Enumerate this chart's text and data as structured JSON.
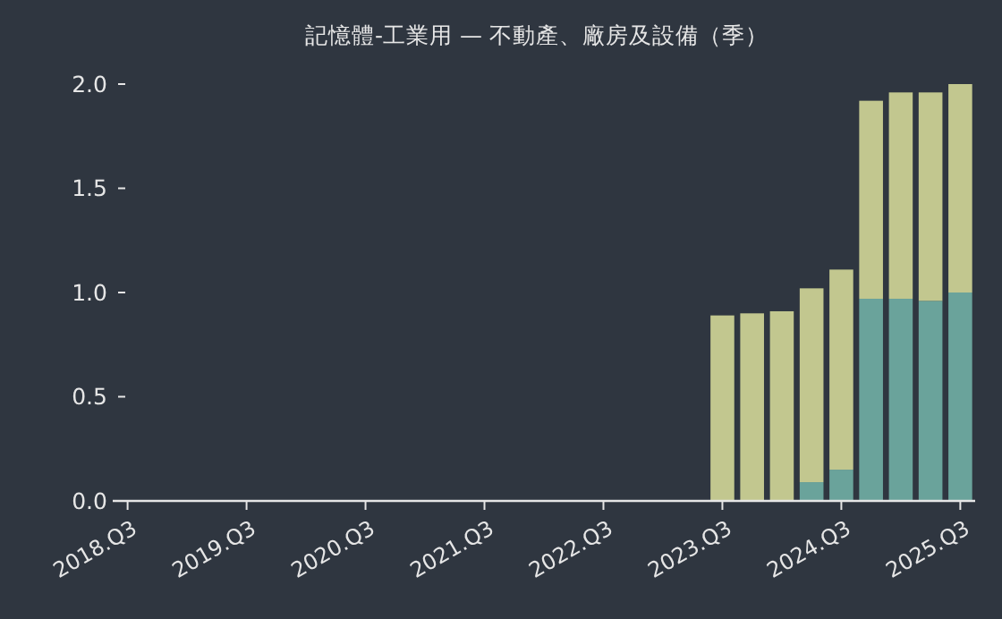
{
  "chart_data": {
    "type": "bar",
    "title": "記憶體-工業用 — 不動產、廠房及設備（季）",
    "stacked": true,
    "categories": [
      "2018.Q3",
      null,
      null,
      null,
      "2019.Q3",
      null,
      null,
      null,
      "2020.Q3",
      null,
      null,
      null,
      "2021.Q3",
      null,
      null,
      null,
      "2022.Q3",
      null,
      null,
      null,
      "2023.Q3",
      null,
      null,
      null,
      "2024.Q3",
      null,
      null,
      null,
      "2025.Q3"
    ],
    "series": [
      {
        "color": "#6aa39b",
        "values": [
          null,
          null,
          null,
          null,
          null,
          null,
          null,
          null,
          null,
          null,
          null,
          null,
          null,
          null,
          null,
          null,
          null,
          null,
          null,
          null,
          null,
          null,
          null,
          0.09,
          0.15,
          0.97,
          0.97,
          0.96,
          1.0
        ]
      },
      {
        "color": "#c2c78f",
        "values": [
          null,
          null,
          null,
          null,
          null,
          null,
          null,
          null,
          null,
          null,
          null,
          null,
          null,
          null,
          null,
          null,
          null,
          null,
          null,
          null,
          0.89,
          0.9,
          0.91,
          0.93,
          0.96,
          0.95,
          0.99,
          1.0,
          1.0
        ]
      }
    ],
    "ylim": [
      0,
      2
    ],
    "yticks": [
      {
        "value": 0,
        "label": "0.0"
      },
      {
        "value": 0.5,
        "label": "0.5"
      },
      {
        "value": 1,
        "label": "1.0"
      },
      {
        "value": 1.5,
        "label": "1.5"
      },
      {
        "value": 2,
        "label": "2.0"
      }
    ]
  }
}
